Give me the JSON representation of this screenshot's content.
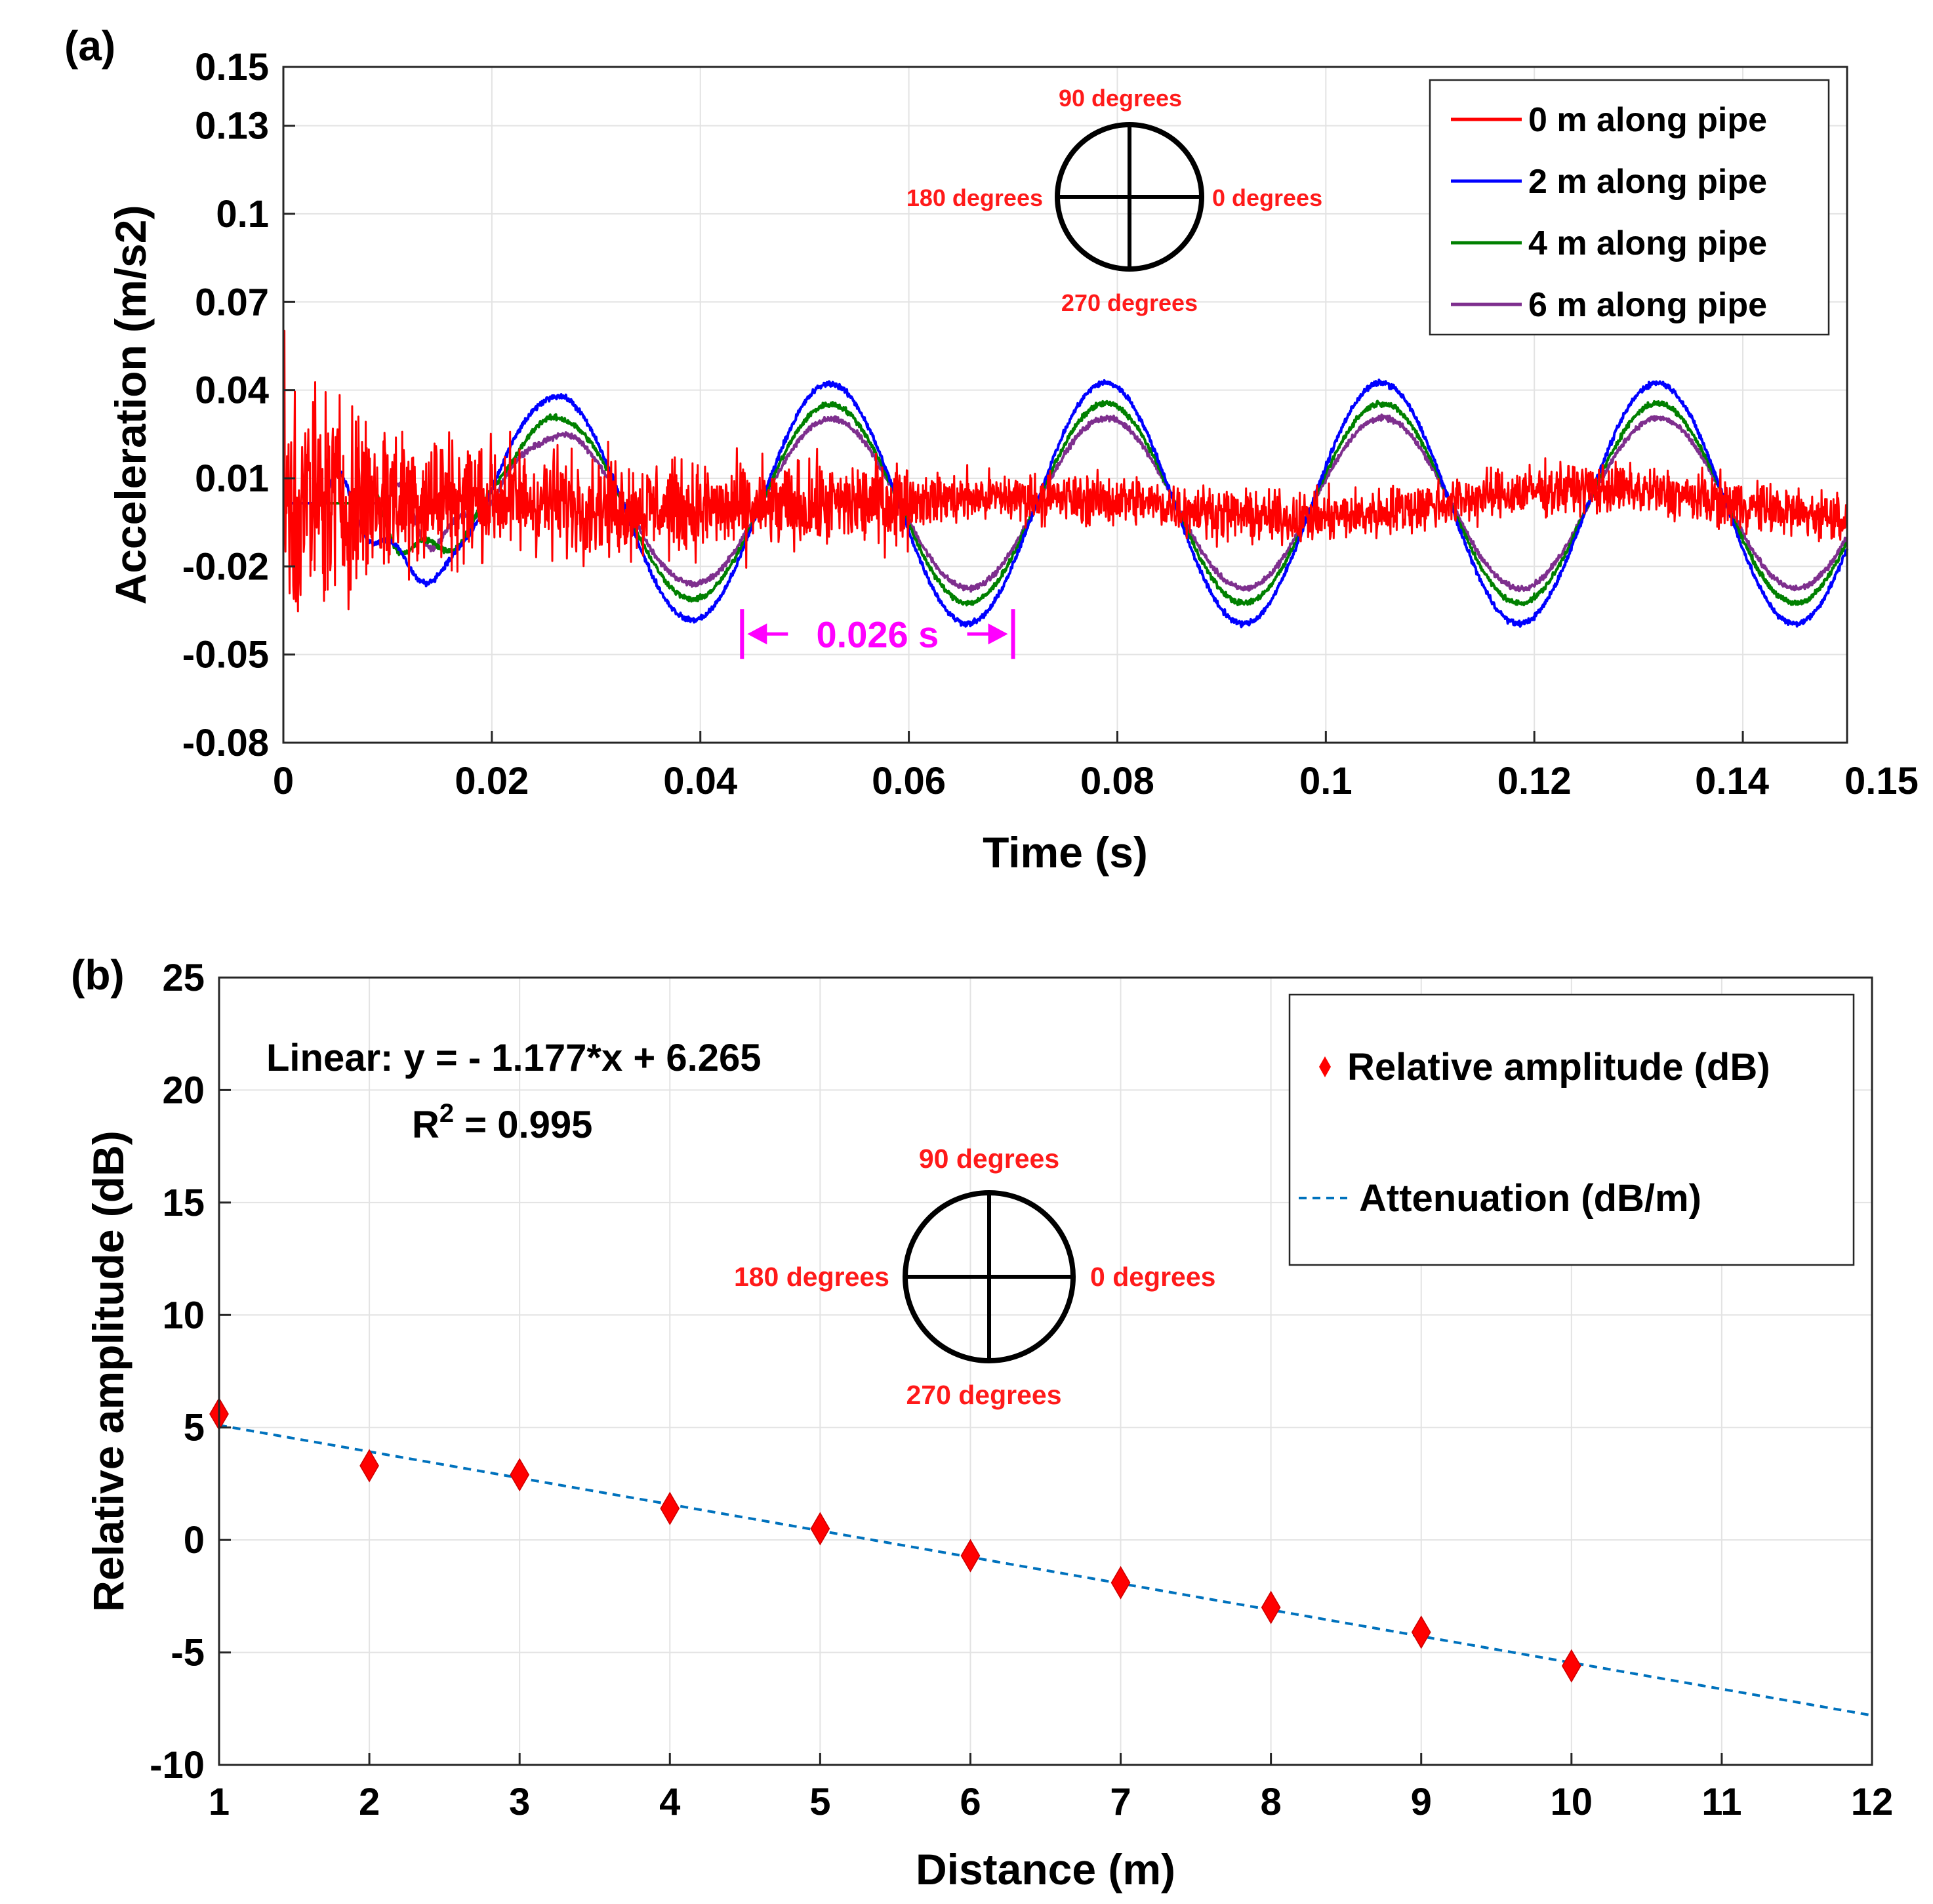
{
  "chart_data": [
    {
      "panel": "(a)",
      "type": "line",
      "xlabel": "Time (s)",
      "ylabel": "Acceleration (m/s2)",
      "xlim": [
        0,
        0.15
      ],
      "ylim": [
        -0.08,
        0.15
      ],
      "xticks": [
        "0",
        "0.02",
        "0.04",
        "0.06",
        "0.08",
        "0.1",
        "0.12",
        "0.14",
        "0.15"
      ],
      "xtick_values": [
        0,
        0.02,
        0.04,
        0.06,
        0.08,
        0.1,
        0.12,
        0.14,
        0.15
      ],
      "yticks": [
        "0.15",
        "0.13",
        "0.1",
        "0.07",
        "0.04",
        "0.01",
        "-0.02",
        "-0.05",
        "-0.08"
      ],
      "ytick_values": [
        0.15,
        0.13,
        0.1,
        0.07,
        0.04,
        0.01,
        -0.02,
        -0.05,
        -0.08
      ],
      "grid": true,
      "legend_position": "top-right",
      "series": [
        {
          "name": "0 m along pipe",
          "color": "#ff0000",
          "onset": 0.0,
          "amplitude": 0.005,
          "noise": 0.012,
          "freq": 38.5,
          "phase": 0.0
        },
        {
          "name": "2 m along pipe",
          "color": "#0000ff",
          "onset": 0.004,
          "amplitude": 0.041,
          "noise": 0.0008,
          "freq": 37.8,
          "phase": 0.0
        },
        {
          "name": "4 m along pipe",
          "color": "#008000",
          "onset": 0.007,
          "amplitude": 0.034,
          "noise": 0.0008,
          "freq": 37.8,
          "phase": 0.7
        },
        {
          "name": "6 m along pipe",
          "color": "#7e2f8e",
          "onset": 0.01,
          "amplitude": 0.029,
          "noise": 0.0008,
          "freq": 37.8,
          "phase": 1.4
        }
      ],
      "annotation": {
        "text": "0.026 s",
        "x_start": 0.044,
        "x_end": 0.07,
        "y": -0.043,
        "color": "#ff00ff"
      },
      "orientation_inset": {
        "top": "90 degrees",
        "right": "0 degrees",
        "left": "180 degrees",
        "bottom": "270 degrees"
      }
    },
    {
      "panel": "(b)",
      "type": "scatter",
      "xlabel": "Distance (m)",
      "ylabel": "Relative amplitude (dB)",
      "xlim": [
        1,
        12
      ],
      "ylim": [
        -10,
        25
      ],
      "xticks": [
        "1",
        "2",
        "3",
        "4",
        "5",
        "6",
        "7",
        "8",
        "9",
        "10",
        "11",
        "12"
      ],
      "xtick_values": [
        1,
        2,
        3,
        4,
        5,
        6,
        7,
        8,
        9,
        10,
        11,
        12
      ],
      "yticks": [
        "25",
        "20",
        "15",
        "10",
        "5",
        "0",
        "-5",
        "-10"
      ],
      "ytick_values": [
        25,
        20,
        15,
        10,
        5,
        0,
        -5,
        -10
      ],
      "grid": true,
      "legend_position": "top-right",
      "series": [
        {
          "name": "Relative amplitude (dB)",
          "color": "#ff0000",
          "marker": "diamond",
          "x": [
            1,
            2,
            3,
            4,
            5,
            6,
            7,
            8,
            9,
            10
          ],
          "y": [
            5.6,
            3.3,
            2.9,
            1.4,
            0.5,
            -0.7,
            -1.9,
            -3.0,
            -4.1,
            -5.6
          ]
        },
        {
          "name": "Attenuation (dB/m)",
          "color": "#0072bd",
          "style": "dashed",
          "x": [
            1,
            12
          ],
          "y": [
            5.1,
            -7.8
          ]
        }
      ],
      "fit": {
        "line1": "Linear:  y = - 1.177*x + 6.265",
        "r2_prefix": "R",
        "r2_sup": "2",
        "r2_suffix": " = 0.995"
      },
      "orientation_inset": {
        "top": "90 degrees",
        "right": "0 degrees",
        "left": "180 degrees",
        "bottom": "270 degrees"
      }
    }
  ]
}
